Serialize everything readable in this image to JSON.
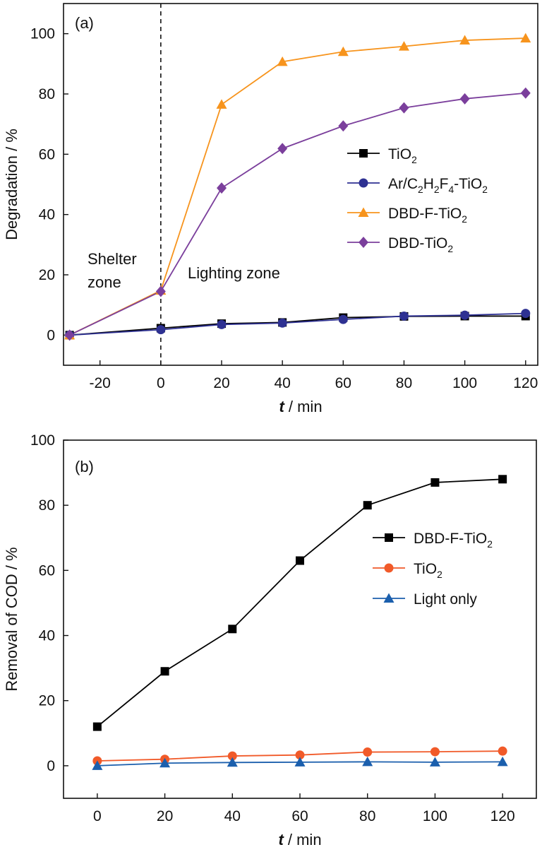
{
  "chart_data": [
    {
      "type": "line",
      "panel_label": "(a)",
      "xlabel_var": "t",
      "xlabel_unit": " / min",
      "ylabel": "Degradation / %",
      "xlim": [
        -32,
        124
      ],
      "ylim": [
        -10,
        110
      ],
      "xticks": [
        -20,
        0,
        20,
        40,
        60,
        80,
        100,
        120
      ],
      "yticks": [
        0,
        20,
        40,
        60,
        80,
        100
      ],
      "annotations": {
        "shelter_line1": "Shelter",
        "shelter_line2": "zone",
        "lighting": "Lighting zone"
      },
      "legend_position": "center-right",
      "x": [
        -30,
        0,
        20,
        40,
        60,
        80,
        100,
        120
      ],
      "series": [
        {
          "name": "TiO2",
          "legend_parts": [
            [
              "TiO",
              "n"
            ],
            [
              "2",
              "sub"
            ]
          ],
          "color": "#000000",
          "marker": "square",
          "values": [
            0,
            2.3,
            3.8,
            4.2,
            5.8,
            6.2,
            6.3,
            6.3
          ]
        },
        {
          "name": "Ar/C2H2F4-TiO2",
          "legend_parts": [
            [
              "Ar/C",
              "n"
            ],
            [
              "2",
              "sub"
            ],
            [
              "H",
              "n"
            ],
            [
              "2",
              "sub"
            ],
            [
              "F",
              "n"
            ],
            [
              "4",
              "sub"
            ],
            [
              "-TiO",
              "n"
            ],
            [
              "2",
              "sub"
            ]
          ],
          "color": "#2e3192",
          "marker": "circle",
          "values": [
            0,
            1.8,
            3.5,
            4.0,
            5.2,
            6.3,
            6.6,
            7.2
          ]
        },
        {
          "name": "DBD-F-TiO2",
          "legend_parts": [
            [
              "DBD-F-TiO",
              "n"
            ],
            [
              "2",
              "sub"
            ]
          ],
          "color": "#f7941d",
          "marker": "triangle",
          "values": [
            0,
            14.8,
            76.5,
            90.7,
            94.0,
            95.8,
            97.8,
            98.5
          ]
        },
        {
          "name": "DBD-TiO2",
          "legend_parts": [
            [
              "DBD-TiO",
              "n"
            ],
            [
              "2",
              "sub"
            ]
          ],
          "color": "#7b3f9c",
          "marker": "diamond",
          "values": [
            0,
            14.5,
            48.8,
            61.9,
            69.4,
            75.4,
            78.4,
            80.3
          ]
        }
      ]
    },
    {
      "type": "line",
      "panel_label": "(b)",
      "xlabel_var": "t",
      "xlabel_unit": " / min",
      "ylabel": "Removal of COD / %",
      "xlim": [
        -10,
        130
      ],
      "ylim": [
        -10,
        100
      ],
      "xticks": [
        0,
        20,
        40,
        60,
        80,
        100,
        120
      ],
      "yticks": [
        0,
        20,
        40,
        60,
        80,
        100
      ],
      "legend_position": "center-right",
      "x": [
        0,
        20,
        40,
        60,
        80,
        100,
        120
      ],
      "series": [
        {
          "name": "DBD-F-TiO2",
          "legend_parts": [
            [
              "DBD-F-TiO",
              "n"
            ],
            [
              "2",
              "sub"
            ]
          ],
          "color": "#000000",
          "marker": "square",
          "values": [
            12,
            29,
            42,
            63,
            80,
            87,
            88
          ]
        },
        {
          "name": "TiO2",
          "legend_parts": [
            [
              "TiO",
              "n"
            ],
            [
              "2",
              "sub"
            ]
          ],
          "color": "#f15a29",
          "marker": "circle",
          "values": [
            1.5,
            2.0,
            3.0,
            3.3,
            4.2,
            4.3,
            4.5
          ]
        },
        {
          "name": "Light only",
          "legend_parts": [
            [
              "Light only",
              "n"
            ]
          ],
          "color": "#1b5fad",
          "marker": "triangle",
          "values": [
            0,
            0.8,
            1.0,
            1.1,
            1.2,
            1.1,
            1.2
          ]
        }
      ]
    }
  ]
}
